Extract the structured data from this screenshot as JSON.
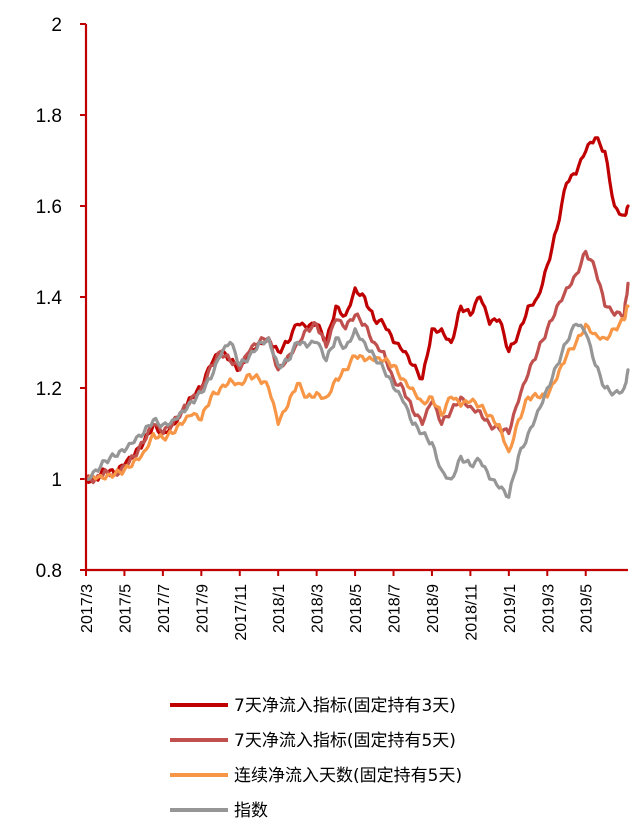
{
  "chart_data": {
    "type": "line",
    "title": "",
    "xlabel": "",
    "ylabel": "",
    "ylim": [
      0.8,
      2.0
    ],
    "yticks": [
      "0.8",
      "1",
      "1.2",
      "1.4",
      "1.6",
      "1.8",
      "2"
    ],
    "xticks": [
      "2017/3",
      "2017/5",
      "2017/7",
      "2017/9",
      "2017/11",
      "2018/1",
      "2018/3",
      "2018/5",
      "2018/7",
      "2018/9",
      "2018/11",
      "2019/1",
      "2019/3",
      "2019/5"
    ],
    "xlim": [
      0,
      28.2
    ],
    "grid": false,
    "legend_position": "bottom",
    "series": [
      {
        "name": "7天净流入指标(固定持有3天)",
        "color": "#C00000",
        "x": [
          0,
          0.5,
          1,
          1.5,
          2,
          2.5,
          3,
          3.5,
          4,
          4.5,
          5,
          5.5,
          6,
          6.5,
          7,
          7.5,
          8,
          8.5,
          9,
          9.5,
          10,
          10.5,
          11,
          11.5,
          12,
          12.5,
          13,
          13.5,
          14,
          14.5,
          15,
          15.5,
          16,
          16.5,
          17,
          17.5,
          18,
          18.5,
          19,
          19.5,
          20,
          20.5,
          21,
          21.5,
          22,
          22.5,
          23,
          23.5,
          24,
          24.5,
          25,
          25.5,
          26,
          26.5,
          27,
          27.5,
          28,
          28.2
        ],
        "values": [
          1.0,
          1.0,
          1.02,
          1.01,
          1.03,
          1.05,
          1.08,
          1.12,
          1.1,
          1.12,
          1.15,
          1.18,
          1.2,
          1.25,
          1.28,
          1.26,
          1.24,
          1.28,
          1.3,
          1.31,
          1.28,
          1.3,
          1.34,
          1.33,
          1.34,
          1.3,
          1.38,
          1.36,
          1.42,
          1.4,
          1.35,
          1.34,
          1.3,
          1.28,
          1.25,
          1.22,
          1.33,
          1.33,
          1.3,
          1.38,
          1.36,
          1.4,
          1.34,
          1.35,
          1.28,
          1.32,
          1.38,
          1.4,
          1.47,
          1.55,
          1.65,
          1.67,
          1.72,
          1.75,
          1.72,
          1.6,
          1.58,
          1.6
        ]
      },
      {
        "name": "7天净流入指标(固定持有5天)",
        "color": "#C0504D",
        "x": [
          0,
          0.5,
          1,
          1.5,
          2,
          2.5,
          3,
          3.5,
          4,
          4.5,
          5,
          5.5,
          6,
          6.5,
          7,
          7.5,
          8,
          8.5,
          9,
          9.5,
          10,
          10.5,
          11,
          11.5,
          12,
          12.5,
          13,
          13.5,
          14,
          14.5,
          15,
          15.5,
          16,
          16.5,
          17,
          17.5,
          18,
          18.5,
          19,
          19.5,
          20,
          20.5,
          21,
          21.5,
          22,
          22.5,
          23,
          23.5,
          24,
          24.5,
          25,
          25.5,
          26,
          26.5,
          27,
          27.5,
          28,
          28.2
        ],
        "values": [
          1.0,
          1.0,
          1.02,
          1.01,
          1.03,
          1.05,
          1.08,
          1.12,
          1.1,
          1.12,
          1.15,
          1.18,
          1.2,
          1.25,
          1.28,
          1.26,
          1.24,
          1.28,
          1.3,
          1.31,
          1.24,
          1.27,
          1.3,
          1.33,
          1.34,
          1.29,
          1.35,
          1.33,
          1.36,
          1.34,
          1.3,
          1.28,
          1.22,
          1.2,
          1.15,
          1.12,
          1.17,
          1.12,
          1.15,
          1.18,
          1.16,
          1.15,
          1.12,
          1.11,
          1.1,
          1.17,
          1.23,
          1.28,
          1.33,
          1.38,
          1.42,
          1.45,
          1.5,
          1.46,
          1.38,
          1.36,
          1.36,
          1.43
        ]
      },
      {
        "name": "连续净流入天数(固定持有5天)",
        "color": "#F79646",
        "x": [
          0,
          0.5,
          1,
          1.5,
          2,
          2.5,
          3,
          3.5,
          4,
          4.5,
          5,
          5.5,
          6,
          6.5,
          7,
          7.5,
          8,
          8.5,
          9,
          9.5,
          10,
          10.5,
          11,
          11.5,
          12,
          12.5,
          13,
          13.5,
          14,
          14.5,
          15,
          15.5,
          16,
          16.5,
          17,
          17.5,
          18,
          18.5,
          19,
          19.5,
          20,
          20.5,
          21,
          21.5,
          22,
          22.5,
          23,
          23.5,
          24,
          24.5,
          25,
          25.5,
          26,
          26.5,
          27,
          27.5,
          28,
          28.2
        ],
        "values": [
          1.0,
          1.0,
          1.0,
          1.01,
          1.02,
          1.04,
          1.06,
          1.1,
          1.09,
          1.1,
          1.12,
          1.14,
          1.13,
          1.18,
          1.2,
          1.22,
          1.21,
          1.23,
          1.22,
          1.2,
          1.12,
          1.16,
          1.21,
          1.18,
          1.19,
          1.18,
          1.22,
          1.24,
          1.27,
          1.26,
          1.26,
          1.26,
          1.25,
          1.22,
          1.2,
          1.17,
          1.18,
          1.14,
          1.18,
          1.16,
          1.17,
          1.16,
          1.14,
          1.12,
          1.06,
          1.13,
          1.18,
          1.18,
          1.18,
          1.22,
          1.27,
          1.3,
          1.34,
          1.32,
          1.31,
          1.33,
          1.35,
          1.38
        ]
      },
      {
        "name": "指数",
        "color": "#969696",
        "x": [
          0,
          0.5,
          1,
          1.5,
          2,
          2.5,
          3,
          3.5,
          4,
          4.5,
          5,
          5.5,
          6,
          6.5,
          7,
          7.5,
          8,
          8.5,
          9,
          9.5,
          10,
          10.5,
          11,
          11.5,
          12,
          12.5,
          13,
          13.5,
          14,
          14.5,
          15,
          15.5,
          16,
          16.5,
          17,
          17.5,
          18,
          18.5,
          19,
          19.5,
          20,
          20.5,
          21,
          21.5,
          22,
          22.5,
          23,
          23.5,
          24,
          24.5,
          25,
          25.5,
          26,
          26.5,
          27,
          27.5,
          28,
          28.2
        ],
        "values": [
          1.0,
          1.02,
          1.04,
          1.05,
          1.06,
          1.08,
          1.1,
          1.13,
          1.12,
          1.13,
          1.15,
          1.17,
          1.19,
          1.22,
          1.27,
          1.3,
          1.25,
          1.27,
          1.3,
          1.31,
          1.25,
          1.26,
          1.3,
          1.29,
          1.3,
          1.26,
          1.31,
          1.29,
          1.33,
          1.3,
          1.27,
          1.24,
          1.2,
          1.17,
          1.12,
          1.1,
          1.08,
          1.02,
          1.0,
          1.05,
          1.03,
          1.04,
          1.0,
          0.98,
          0.96,
          1.05,
          1.1,
          1.15,
          1.2,
          1.25,
          1.3,
          1.34,
          1.32,
          1.25,
          1.2,
          1.19,
          1.2,
          1.24
        ]
      }
    ]
  }
}
